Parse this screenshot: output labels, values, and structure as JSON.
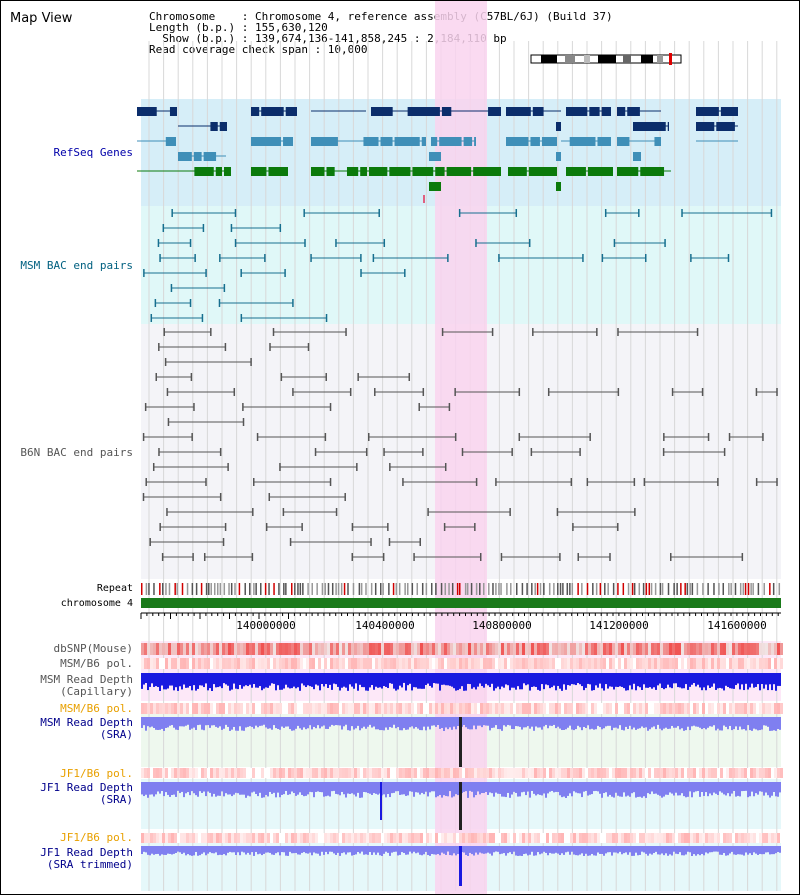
{
  "app_title": "Map View",
  "info": {
    "chromosome": "Chromosome    : Chromosome 4, reference assembly (C57BL/6J) (Build 37)",
    "length": "Length (b.p.) : 155,630,120",
    "show": "  Show (b.p.) : 139,674,136-141,858,245 : 2,184,110 bp",
    "coverage": "Read coverage check span : 10,000"
  },
  "tracks": {
    "refseq": "RefSeq Genes",
    "msm_bac": "MSM BAC end pairs",
    "b6n_bac": "B6N BAC end pairs",
    "repeat": "Repeat",
    "chromosome": "chromosome 4",
    "dbsnp": "dbSNP(Mouse)",
    "msm_b6_pol": "MSM/B6 pol.",
    "msm_depth_cap_1": "MSM Read Depth",
    "msm_depth_cap_2": "(Capillary)",
    "msm_b6_pol2": "MSM/B6 pol.",
    "msm_depth_sra_1": "MSM Read Depth",
    "msm_depth_sra_2": "(SRA)",
    "jf1_b6_pol": "JF1/B6 pol.",
    "jf1_depth_sra_1": "JF1 Read Depth",
    "jf1_depth_sra_2": "(SRA)",
    "jf1_b6_pol2": "JF1/B6 pol.",
    "jf1_depth_trim_1": "JF1 Read Depth",
    "jf1_depth_trim_2": "(SRA trimmed)"
  },
  "axis_ticks": [
    "140000000",
    "140400000",
    "140800000",
    "141200000",
    "141600000"
  ],
  "colors": {
    "refseq_bg": "#d6eef8",
    "msm_bac_bg": "#e0f8f8",
    "b6n_bg": "#f4f4f8",
    "highlight": "#f9d4ef",
    "gene_dark": "#0b2d6b",
    "gene_mid": "#3f8fb8",
    "gene_green": "#0b7a0b",
    "msm_line": "#176f8f",
    "b6n_line": "#555555",
    "chromosome_bar": "#1a7a1a",
    "depth_blue": "#1a1ae0",
    "depth_light": "#7f7ff0"
  }
}
